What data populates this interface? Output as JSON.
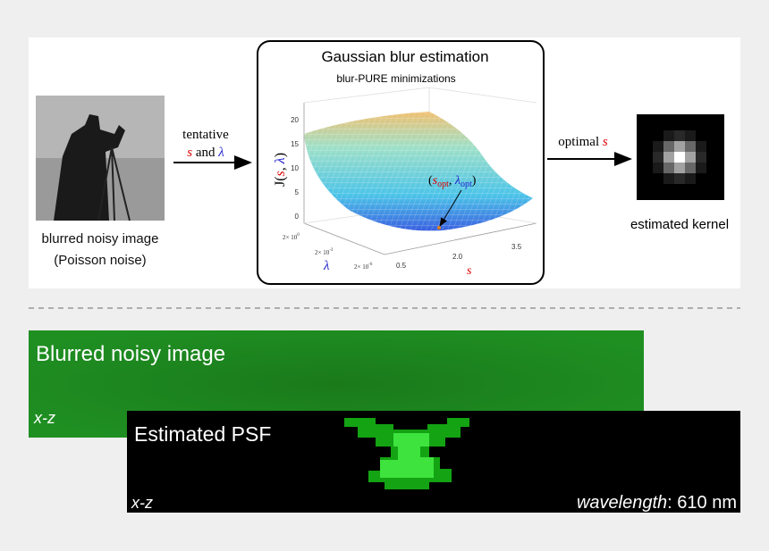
{
  "top_panel": {
    "input": {
      "caption_line1": "blurred noisy image",
      "caption_line2": "(Poisson noise)"
    },
    "left_arrow": {
      "line1": "tentative",
      "s": "s",
      "and": "and",
      "lambda": "λ"
    },
    "box": {
      "title": "Gaussian blur estimation",
      "subtitle": "blur-PURE minimizations",
      "plot": {
        "z_axis_label": [
          "J(",
          "s",
          ", ",
          "λ",
          ")"
        ],
        "z_ticks": [
          "20",
          "15",
          "10",
          "5",
          "0"
        ],
        "lambda_ticks": [
          {
            "base": "2× 10",
            "exp": "0"
          },
          {
            "base": "2× 10",
            "exp": "-3"
          },
          {
            "base": "2× 10",
            "exp": "-6"
          }
        ],
        "lambda_label": "λ",
        "s_ticks": [
          "0.5",
          "2.0",
          "3.5"
        ],
        "s_label": "s",
        "annotation": [
          "(",
          "s",
          "opt",
          ", ",
          "λ",
          "opt",
          ")"
        ]
      }
    },
    "right_arrow": {
      "line1": "optimal",
      "s": "s"
    },
    "output": {
      "caption": "estimated kernel"
    }
  },
  "bottom_panel": {
    "blurred": {
      "title": "Blurred noisy image",
      "view": "x-z"
    },
    "psf": {
      "title": "Estimated PSF",
      "view": "x-z",
      "wavelength_label": "wavelength",
      "wavelength_value": ": 610 nm"
    }
  }
}
